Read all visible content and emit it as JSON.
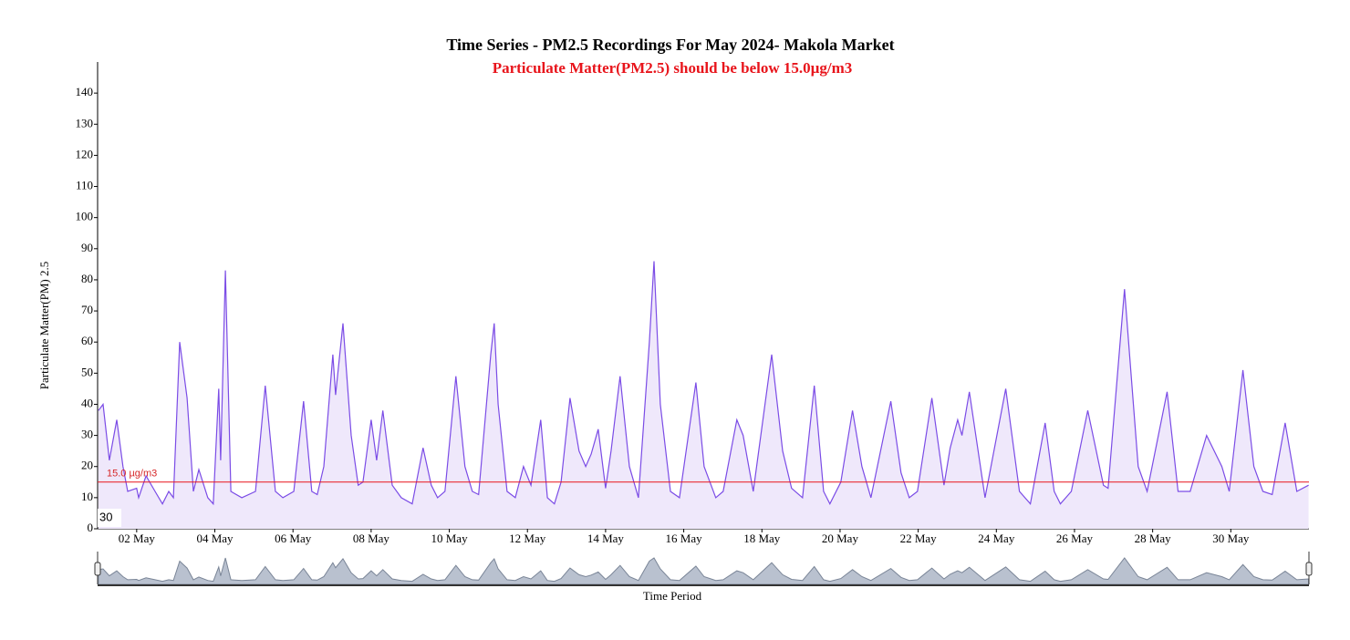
{
  "chart_data": {
    "type": "area",
    "title": "Time Series - PM2.5 Recordings For May 2024- Makola Market",
    "subtitle": "Particulate Matter(PM2.5) should be below 15.0µg/m3",
    "y_label": "Particulate Matter(PM) 2.5",
    "x_label": "Time Period",
    "corner_label": "30",
    "threshold": {
      "value": 15,
      "label": "15.0 µg/m3",
      "color": "#e8141b"
    },
    "xlim": [
      1,
      32
    ],
    "xticks": [
      {
        "value": 2,
        "label": "02 May"
      },
      {
        "value": 4,
        "label": "04 May"
      },
      {
        "value": 6,
        "label": "06 May"
      },
      {
        "value": 8,
        "label": "08 May"
      },
      {
        "value": 10,
        "label": "10 May"
      },
      {
        "value": 12,
        "label": "12 May"
      },
      {
        "value": 14,
        "label": "14 May"
      },
      {
        "value": 16,
        "label": "16 May"
      },
      {
        "value": 18,
        "label": "18 May"
      },
      {
        "value": 20,
        "label": "20 May"
      },
      {
        "value": 22,
        "label": "22 May"
      },
      {
        "value": 24,
        "label": "24 May"
      },
      {
        "value": 26,
        "label": "26 May"
      },
      {
        "value": 28,
        "label": "28 May"
      },
      {
        "value": 30,
        "label": "30 May"
      }
    ],
    "ylim": [
      0,
      150
    ],
    "yticks": [
      0,
      10,
      20,
      30,
      40,
      50,
      60,
      70,
      80,
      90,
      100,
      110,
      120,
      130,
      140
    ],
    "color": "#7b4ce6",
    "fill": "#efe8fb",
    "x": [
      1.02,
      1.14,
      1.3,
      1.49,
      1.65,
      1.77,
      2.0,
      2.05,
      2.24,
      2.47,
      2.66,
      2.82,
      2.94,
      3.1,
      3.29,
      3.45,
      3.59,
      3.82,
      3.96,
      4.1,
      4.15,
      4.27,
      4.41,
      4.69,
      5.04,
      5.29,
      5.55,
      5.74,
      6.02,
      6.27,
      6.48,
      6.62,
      6.79,
      7.02,
      7.09,
      7.28,
      7.49,
      7.67,
      7.79,
      8.0,
      8.14,
      8.3,
      8.54,
      8.77,
      9.05,
      9.33,
      9.54,
      9.7,
      9.89,
      10.17,
      10.4,
      10.59,
      10.75,
      11.06,
      11.15,
      11.25,
      11.48,
      11.69,
      11.9,
      12.09,
      12.34,
      12.51,
      12.69,
      12.86,
      13.09,
      13.32,
      13.49,
      13.63,
      13.81,
      14.0,
      14.14,
      14.37,
      14.61,
      14.84,
      15.12,
      15.24,
      15.4,
      15.66,
      15.89,
      16.31,
      16.52,
      16.82,
      17.01,
      17.36,
      17.52,
      17.78,
      18.25,
      18.53,
      18.76,
      19.04,
      19.34,
      19.58,
      19.74,
      20.02,
      20.32,
      20.56,
      20.79,
      21.3,
      21.56,
      21.77,
      21.98,
      22.35,
      22.66,
      22.82,
      23.01,
      23.12,
      23.31,
      23.71,
      24.24,
      24.59,
      24.87,
      25.25,
      25.48,
      25.64,
      25.92,
      26.34,
      26.74,
      26.86,
      27.28,
      27.63,
      27.86,
      28.37,
      28.65,
      28.96,
      29.38,
      29.77,
      29.96,
      30.31,
      30.59,
      30.82,
      31.06,
      31.39,
      31.69,
      31.99
    ],
    "values": [
      38,
      40,
      22,
      35,
      20,
      12,
      13,
      10,
      17,
      12,
      8,
      12,
      10,
      60,
      42,
      12,
      19,
      10,
      8,
      45,
      22,
      83,
      12,
      10,
      12,
      46,
      12,
      10,
      12,
      41,
      12,
      11,
      20,
      56,
      43,
      66,
      30,
      14,
      15,
      35,
      22,
      38,
      14,
      10,
      8,
      26,
      14,
      10,
      12,
      49,
      20,
      12,
      11,
      56,
      66,
      40,
      12,
      10,
      20,
      14,
      35,
      10,
      8,
      15,
      42,
      25,
      20,
      24,
      32,
      13,
      25,
      49,
      20,
      10,
      60,
      86,
      40,
      12,
      10,
      47,
      20,
      10,
      12,
      35,
      30,
      12,
      56,
      25,
      13,
      10,
      46,
      12,
      8,
      15,
      38,
      20,
      10,
      41,
      18,
      10,
      12,
      42,
      14,
      26,
      35,
      30,
      44,
      10,
      45,
      12,
      8,
      34,
      12,
      8,
      12,
      38,
      14,
      13,
      77,
      20,
      12,
      44,
      12,
      12,
      30,
      20,
      12,
      51,
      20,
      12,
      11,
      34,
      12,
      14
    ]
  }
}
